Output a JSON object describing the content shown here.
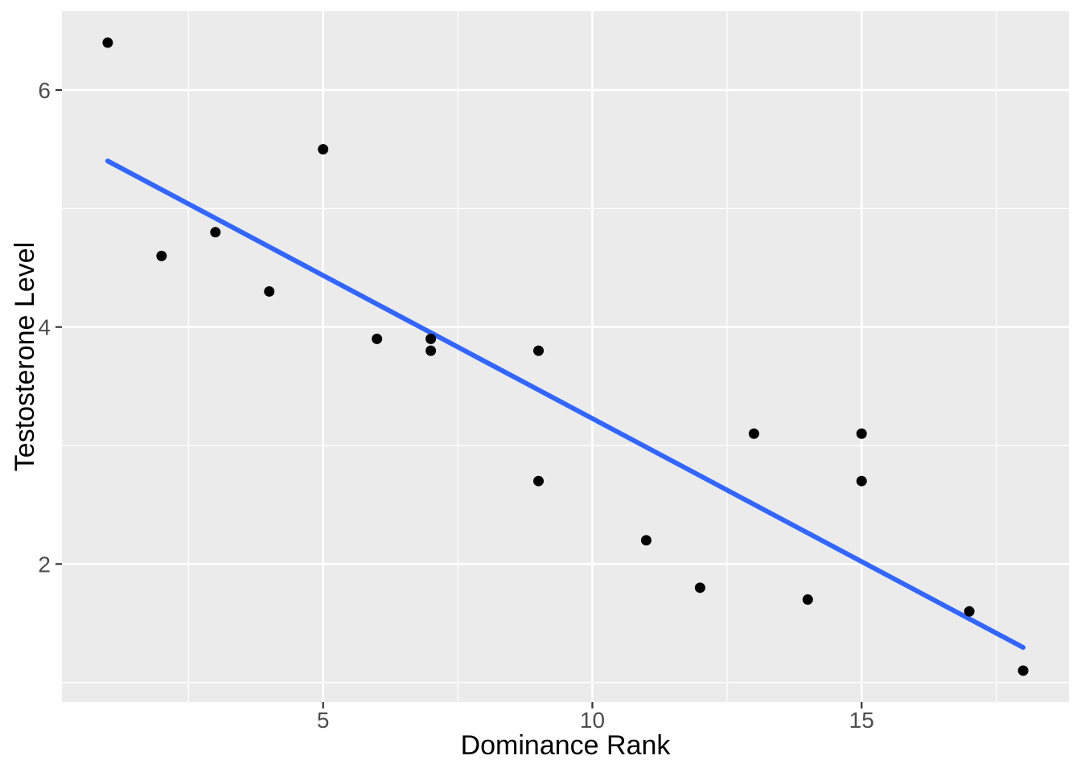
{
  "chart_data": {
    "type": "scatter",
    "title": "",
    "xlabel": "Dominance Rank",
    "ylabel": "Testosterone Level",
    "points": [
      {
        "x": 1,
        "y": 6.4
      },
      {
        "x": 2,
        "y": 4.6
      },
      {
        "x": 3,
        "y": 4.8
      },
      {
        "x": 4,
        "y": 4.3
      },
      {
        "x": 5,
        "y": 5.5
      },
      {
        "x": 6,
        "y": 3.9
      },
      {
        "x": 7,
        "y": 3.9
      },
      {
        "x": 7,
        "y": 3.8
      },
      {
        "x": 9,
        "y": 3.8
      },
      {
        "x": 9,
        "y": 2.7
      },
      {
        "x": 11,
        "y": 2.2
      },
      {
        "x": 12,
        "y": 1.8
      },
      {
        "x": 13,
        "y": 3.1
      },
      {
        "x": 14,
        "y": 1.7
      },
      {
        "x": 15,
        "y": 3.1
      },
      {
        "x": 15,
        "y": 2.7
      },
      {
        "x": 17,
        "y": 1.6
      },
      {
        "x": 18,
        "y": 1.1
      }
    ],
    "trend_line": {
      "kind": "linear-regression",
      "slope": -0.2415,
      "intercept": 5.6428,
      "x_start": 1,
      "x_end": 18
    },
    "x_ticks": [
      5,
      10,
      15
    ],
    "y_ticks": [
      2,
      4,
      6
    ],
    "x_minor_gridlines": [
      2.5,
      7.5,
      12.5,
      17.5
    ],
    "y_minor_gridlines": [
      1,
      3,
      5
    ],
    "xlim": [
      0.15,
      18.85
    ],
    "ylim": [
      0.835,
      6.665
    ],
    "grid": true,
    "legend": "none",
    "style": {
      "panel_background": "#EBEBEB",
      "figure_background": "#FFFFFF",
      "gridline_color": "#FFFFFF",
      "point_color": "#000000",
      "trend_line_color": "#3366FF",
      "tick_mark_color": "#333333",
      "tick_label_color": "#4D4D4D",
      "axis_title_color": "#000000"
    }
  }
}
